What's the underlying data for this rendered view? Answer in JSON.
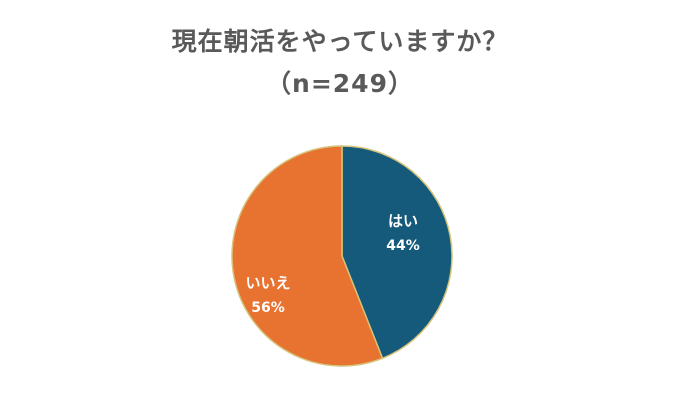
{
  "chart_data": {
    "type": "pie",
    "title": "現在朝活をやっていますか？",
    "subtitle": "（n=249）",
    "slices": [
      {
        "label": "はい",
        "value": 44,
        "display": "44%",
        "color": "#155a7a"
      },
      {
        "label": "いいえ",
        "value": 56,
        "display": "56%",
        "color": "#e87230"
      }
    ],
    "start_angle": "12 o'clock",
    "direction": "clockwise",
    "slice_border_color": "#d6c37a"
  }
}
